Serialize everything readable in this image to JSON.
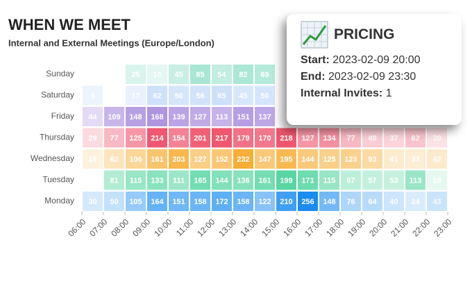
{
  "chart_data": {
    "type": "heatmap",
    "title": "WHEN WE MEET",
    "subtitle": "Internal and External Meetings (Europe/London)",
    "xticks": [
      "06:00",
      "07:00",
      "08:00",
      "09:00",
      "10:00",
      "11:00",
      "12:00",
      "13:00",
      "14:00",
      "15:00",
      "16:00",
      "17:00",
      "18:00",
      "19:00",
      "20:00",
      "21:00",
      "22:00",
      "23:00"
    ],
    "series": [
      {
        "name": "Sunday",
        "color": "#1fbf8f",
        "values": [
          null,
          null,
          25,
          10,
          45,
          85,
          54,
          82,
          69,
          null,
          null,
          null,
          null,
          null,
          null,
          null,
          null
        ]
      },
      {
        "name": "Saturday",
        "color": "#5b9bf0",
        "values": [
          9,
          null,
          17,
          62,
          50,
          56,
          65,
          45,
          50,
          null,
          null,
          null,
          null,
          null,
          null,
          null,
          null
        ]
      },
      {
        "name": "Friday",
        "color": "#8a63d2",
        "values": [
          44,
          109,
          148,
          168,
          139,
          127,
          113,
          151,
          137,
          null,
          null,
          null,
          null,
          null,
          null,
          null,
          null
        ]
      },
      {
        "name": "Thursday",
        "color": "#ec3b57",
        "values": [
          29,
          77,
          125,
          214,
          154,
          201,
          217,
          179,
          170,
          218,
          127,
          134,
          77,
          49,
          37,
          62,
          20
        ]
      },
      {
        "name": "Wednesday",
        "color": "#f5a623",
        "values": [
          18,
          62,
          106,
          161,
          203,
          127,
          152,
          232,
          147,
          195,
          144,
          125,
          123,
          93,
          41,
          33,
          42
        ]
      },
      {
        "name": "Tuesday",
        "color": "#2ecc8a",
        "values": [
          null,
          81,
          115,
          133,
          111,
          165,
          144,
          136,
          161,
          199,
          171,
          115,
          67,
          57,
          53,
          113,
          10
        ]
      },
      {
        "name": "Monday",
        "color": "#1a8cf0",
        "values": [
          30,
          50,
          105,
          164,
          151,
          158,
          172,
          158,
          122,
          210,
          256,
          148,
          76,
          64,
          40,
          24,
          43
        ]
      }
    ]
  },
  "tooltip": {
    "title": "PRICING",
    "rows": [
      {
        "label": "Start:",
        "value": "2023-02-09 20:00"
      },
      {
        "label": "End:",
        "value": "2023-02-09 23:30"
      },
      {
        "label": "Internal Invites:",
        "value": "1"
      }
    ]
  }
}
